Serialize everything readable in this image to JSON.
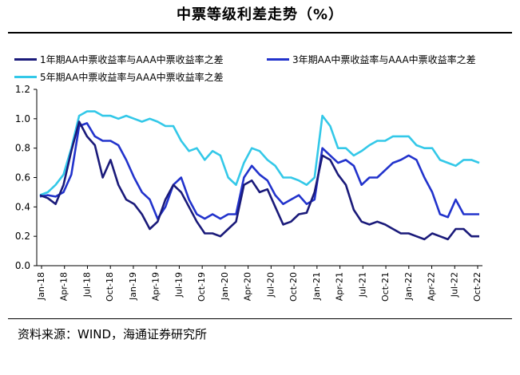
{
  "title": "中票等级利差走势（%）",
  "source": "资料来源：WIND，海通证券研究所",
  "chart_data": {
    "type": "line",
    "ylim": [
      0,
      1.2
    ],
    "yticks": [
      "0.0",
      "0.2",
      "0.4",
      "0.6",
      "0.8",
      "1.0",
      "1.2"
    ],
    "xticks": [
      "Jan-18",
      "Apr-18",
      "Jul-18",
      "Oct-18",
      "Jan-19",
      "Apr-19",
      "Jul-19",
      "Oct-19",
      "Jan-20",
      "Apr-20",
      "Jul-20",
      "Oct-20",
      "Jan-21",
      "Apr-21",
      "Jul-21",
      "Oct-21",
      "Jan-22",
      "Apr-22",
      "Jul-22",
      "Oct-22"
    ],
    "series": [
      {
        "name": "1年期AA中票收益率与AAA中票收益率之差",
        "color": "#1a1a7a",
        "points": [
          [
            0,
            0.48
          ],
          [
            1,
            0.46
          ],
          [
            2,
            0.42
          ],
          [
            3,
            0.55
          ],
          [
            4,
            0.78
          ],
          [
            5,
            0.98
          ],
          [
            6,
            0.88
          ],
          [
            7,
            0.82
          ],
          [
            8,
            0.6
          ],
          [
            9,
            0.72
          ],
          [
            10,
            0.55
          ],
          [
            11,
            0.45
          ],
          [
            12,
            0.42
          ],
          [
            13,
            0.35
          ],
          [
            14,
            0.25
          ],
          [
            15,
            0.3
          ],
          [
            16,
            0.45
          ],
          [
            17,
            0.55
          ],
          [
            18,
            0.5
          ],
          [
            19,
            0.4
          ],
          [
            20,
            0.3
          ],
          [
            21,
            0.22
          ],
          [
            22,
            0.22
          ],
          [
            23,
            0.2
          ],
          [
            24,
            0.25
          ],
          [
            25,
            0.3
          ],
          [
            26,
            0.55
          ],
          [
            27,
            0.58
          ],
          [
            28,
            0.5
          ],
          [
            29,
            0.52
          ],
          [
            30,
            0.4
          ],
          [
            31,
            0.28
          ],
          [
            32,
            0.3
          ],
          [
            33,
            0.35
          ],
          [
            34,
            0.36
          ],
          [
            35,
            0.5
          ],
          [
            36,
            0.75
          ],
          [
            37,
            0.72
          ],
          [
            38,
            0.62
          ],
          [
            39,
            0.55
          ],
          [
            40,
            0.38
          ],
          [
            41,
            0.3
          ],
          [
            42,
            0.28
          ],
          [
            43,
            0.3
          ],
          [
            44,
            0.28
          ],
          [
            45,
            0.25
          ],
          [
            46,
            0.22
          ],
          [
            47,
            0.22
          ],
          [
            48,
            0.2
          ],
          [
            49,
            0.18
          ],
          [
            50,
            0.22
          ],
          [
            51,
            0.2
          ],
          [
            52,
            0.18
          ],
          [
            53,
            0.25
          ],
          [
            54,
            0.25
          ],
          [
            55,
            0.2
          ],
          [
            56,
            0.2
          ]
        ]
      },
      {
        "name": "3年期AA中票收益率与AAA中票收益率之差",
        "color": "#2233cc",
        "points": [
          [
            0,
            0.47
          ],
          [
            1,
            0.48
          ],
          [
            2,
            0.47
          ],
          [
            3,
            0.5
          ],
          [
            4,
            0.62
          ],
          [
            5,
            0.95
          ],
          [
            6,
            0.97
          ],
          [
            7,
            0.88
          ],
          [
            8,
            0.85
          ],
          [
            9,
            0.85
          ],
          [
            10,
            0.82
          ],
          [
            11,
            0.72
          ],
          [
            12,
            0.6
          ],
          [
            13,
            0.5
          ],
          [
            14,
            0.45
          ],
          [
            15,
            0.32
          ],
          [
            16,
            0.4
          ],
          [
            17,
            0.55
          ],
          [
            18,
            0.6
          ],
          [
            19,
            0.45
          ],
          [
            20,
            0.35
          ],
          [
            21,
            0.32
          ],
          [
            22,
            0.35
          ],
          [
            23,
            0.32
          ],
          [
            24,
            0.35
          ],
          [
            25,
            0.35
          ],
          [
            26,
            0.6
          ],
          [
            27,
            0.68
          ],
          [
            28,
            0.62
          ],
          [
            29,
            0.58
          ],
          [
            30,
            0.48
          ],
          [
            31,
            0.42
          ],
          [
            32,
            0.45
          ],
          [
            33,
            0.48
          ],
          [
            34,
            0.42
          ],
          [
            35,
            0.45
          ],
          [
            36,
            0.8
          ],
          [
            37,
            0.75
          ],
          [
            38,
            0.7
          ],
          [
            39,
            0.72
          ],
          [
            40,
            0.68
          ],
          [
            41,
            0.55
          ],
          [
            42,
            0.6
          ],
          [
            43,
            0.6
          ],
          [
            44,
            0.65
          ],
          [
            45,
            0.7
          ],
          [
            46,
            0.72
          ],
          [
            47,
            0.75
          ],
          [
            48,
            0.72
          ],
          [
            49,
            0.6
          ],
          [
            50,
            0.5
          ],
          [
            51,
            0.35
          ],
          [
            52,
            0.33
          ],
          [
            53,
            0.45
          ],
          [
            54,
            0.35
          ],
          [
            55,
            0.35
          ],
          [
            56,
            0.35
          ]
        ]
      },
      {
        "name": "5年期AA中票收益率与AAA中票收益率之差",
        "color": "#33c8e8",
        "points": [
          [
            0,
            0.48
          ],
          [
            1,
            0.5
          ],
          [
            2,
            0.55
          ],
          [
            3,
            0.62
          ],
          [
            4,
            0.8
          ],
          [
            5,
            1.02
          ],
          [
            6,
            1.05
          ],
          [
            7,
            1.05
          ],
          [
            8,
            1.02
          ],
          [
            9,
            1.02
          ],
          [
            10,
            1.0
          ],
          [
            11,
            1.02
          ],
          [
            12,
            1.0
          ],
          [
            13,
            0.98
          ],
          [
            14,
            1.0
          ],
          [
            15,
            0.98
          ],
          [
            16,
            0.95
          ],
          [
            17,
            0.95
          ],
          [
            18,
            0.85
          ],
          [
            19,
            0.78
          ],
          [
            20,
            0.8
          ],
          [
            21,
            0.72
          ],
          [
            22,
            0.78
          ],
          [
            23,
            0.75
          ],
          [
            24,
            0.6
          ],
          [
            25,
            0.55
          ],
          [
            26,
            0.7
          ],
          [
            27,
            0.8
          ],
          [
            28,
            0.78
          ],
          [
            29,
            0.72
          ],
          [
            30,
            0.68
          ],
          [
            31,
            0.6
          ],
          [
            32,
            0.6
          ],
          [
            33,
            0.58
          ],
          [
            34,
            0.55
          ],
          [
            35,
            0.6
          ],
          [
            36,
            1.02
          ],
          [
            37,
            0.95
          ],
          [
            38,
            0.8
          ],
          [
            39,
            0.8
          ],
          [
            40,
            0.75
          ],
          [
            41,
            0.78
          ],
          [
            42,
            0.82
          ],
          [
            43,
            0.85
          ],
          [
            44,
            0.85
          ],
          [
            45,
            0.88
          ],
          [
            46,
            0.88
          ],
          [
            47,
            0.88
          ],
          [
            48,
            0.82
          ],
          [
            49,
            0.8
          ],
          [
            50,
            0.8
          ],
          [
            51,
            0.72
          ],
          [
            52,
            0.7
          ],
          [
            53,
            0.68
          ],
          [
            54,
            0.72
          ],
          [
            55,
            0.72
          ],
          [
            56,
            0.7
          ]
        ]
      }
    ]
  }
}
